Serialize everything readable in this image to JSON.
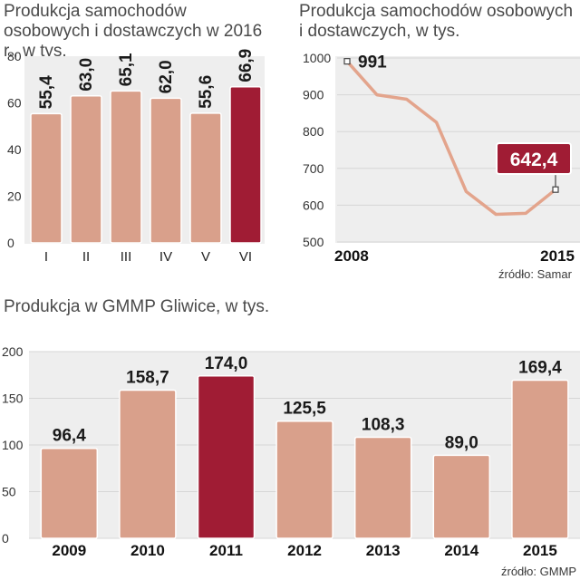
{
  "colors": {
    "bar": "#d9a08b",
    "bar_stroke": "#ffffff",
    "highlight": "#a01c34",
    "line": "#e3a48c",
    "panel": "#eeeeee",
    "grid": "#d6d6d6"
  },
  "chart_data": [
    {
      "type": "bar",
      "title": "Produkcja samochodów osobowych i dostawczych w 2016 r., w tys.",
      "categories": [
        "I",
        "II",
        "III",
        "IV",
        "V",
        "VI"
      ],
      "values": [
        55.4,
        63.0,
        65.1,
        62.0,
        55.6,
        66.9
      ],
      "labels": [
        "55,4",
        "63,0",
        "65,1",
        "62,0",
        "55,6",
        "66,9"
      ],
      "highlight_index": 5,
      "ylim": [
        0,
        80
      ],
      "yticks": [
        0,
        20,
        40,
        60,
        80
      ],
      "xlabel": "",
      "ylabel": ""
    },
    {
      "type": "line",
      "title": "Produkcja samochodów osobowych i dostawczych, w tys.",
      "x": [
        2008,
        2009,
        2010,
        2011,
        2012,
        2013,
        2014,
        2015
      ],
      "values": [
        991,
        900,
        888,
        825,
        637,
        575,
        578,
        642.4
      ],
      "x_axis_labels": [
        "2008",
        "2015"
      ],
      "start_label": "991",
      "end_label": "642,4",
      "ylim": [
        500,
        1000
      ],
      "yticks": [
        500,
        600,
        700,
        800,
        900,
        1000
      ],
      "source": "źródło: Samar",
      "xlabel": "",
      "ylabel": ""
    },
    {
      "type": "bar",
      "title": "Produkcja w GMMP Gliwice, w tys.",
      "categories": [
        "2009",
        "2010",
        "2011",
        "2012",
        "2013",
        "2014",
        "2015"
      ],
      "values": [
        96.4,
        158.7,
        174.0,
        125.5,
        108.3,
        89.0,
        169.4
      ],
      "labels": [
        "96,4",
        "158,7",
        "174,0",
        "125,5",
        "108,3",
        "89,0",
        "169,4"
      ],
      "highlight_index": 2,
      "ylim": [
        0,
        200
      ],
      "yticks": [
        0,
        50,
        100,
        150,
        200
      ],
      "source": "źródło: GMMP",
      "xlabel": "",
      "ylabel": ""
    }
  ]
}
